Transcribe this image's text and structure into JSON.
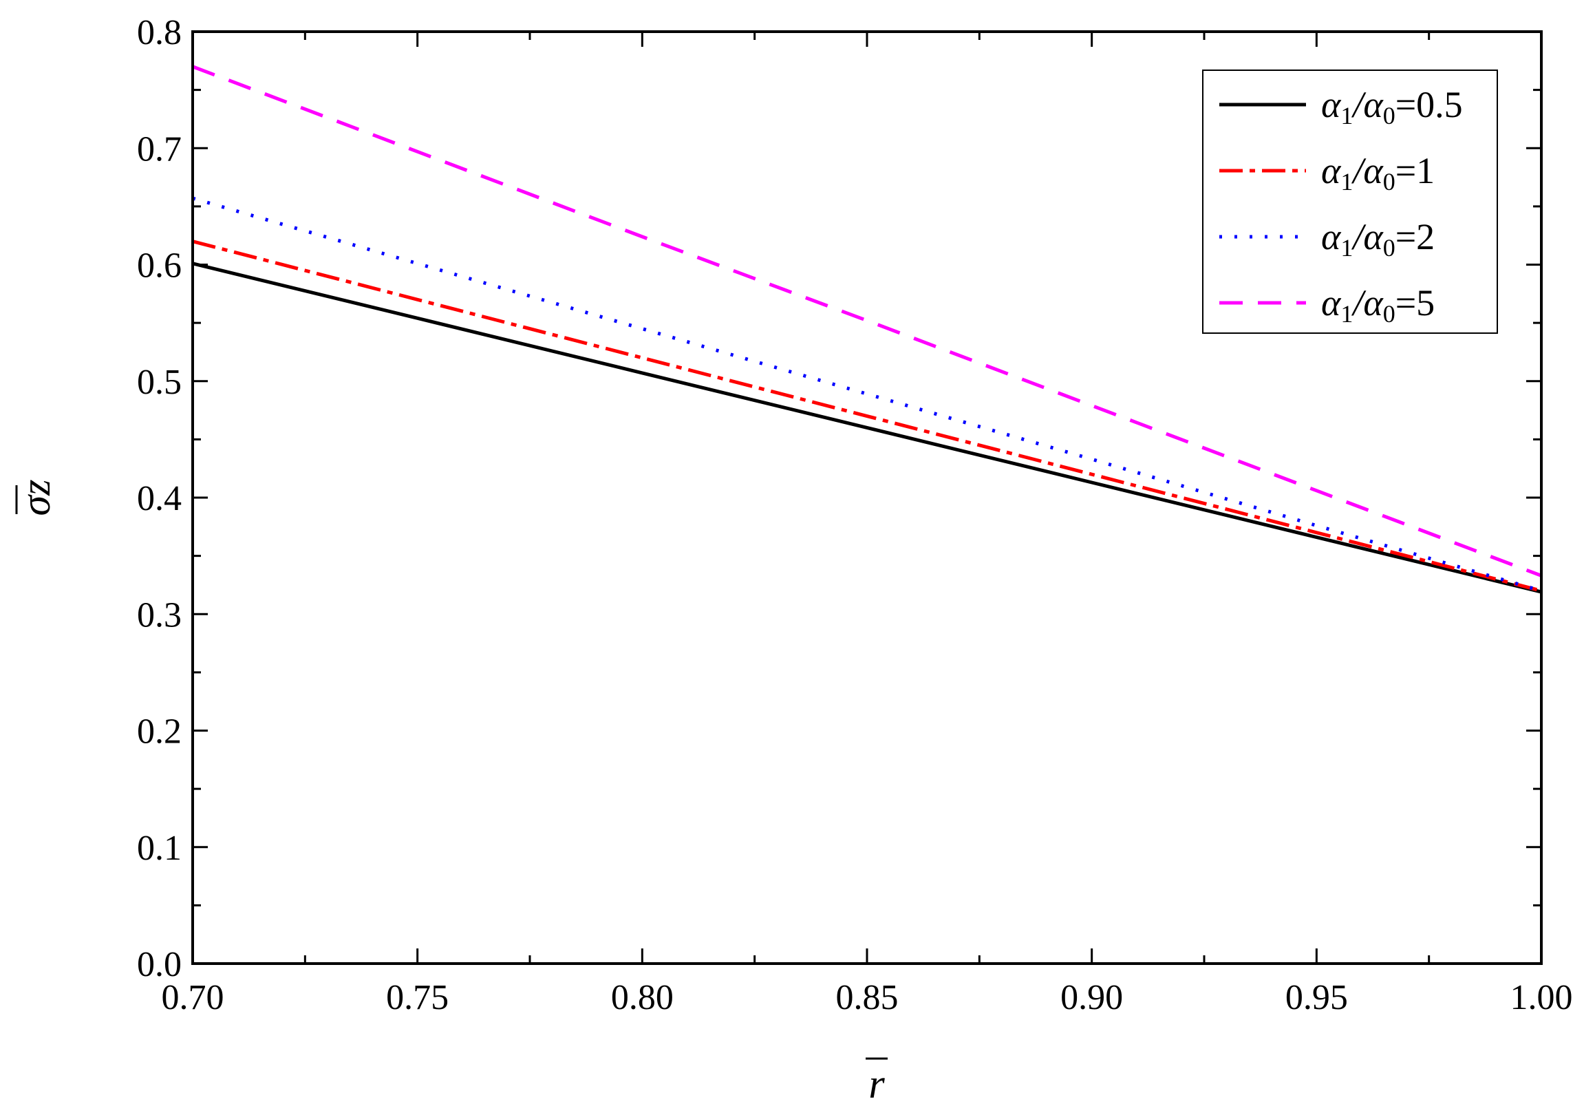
{
  "chart_data": {
    "type": "line",
    "xlabel": "r",
    "ylabel": "σz",
    "xlim": [
      0.7,
      1.0
    ],
    "ylim": [
      0.0,
      0.8
    ],
    "xticks": [
      "0.70",
      "0.75",
      "0.80",
      "0.85",
      "0.90",
      "0.95",
      "1.00"
    ],
    "yticks": [
      "0.0",
      "0.1",
      "0.2",
      "0.3",
      "0.4",
      "0.5",
      "0.6",
      "0.7",
      "0.8"
    ],
    "grid": false,
    "legend_position": "top-right",
    "series": [
      {
        "name": "α1/α0=0.5",
        "legend_prefix": "α",
        "legend_sub1": "1",
        "legend_mid": "/α",
        "legend_sub2": "0",
        "legend_value": "=0.5",
        "color": "#000000",
        "style": "solid",
        "x": [
          0.7,
          0.75,
          0.8,
          0.85,
          0.9,
          0.95,
          1.0
        ],
        "y": [
          0.601,
          0.554,
          0.507,
          0.46,
          0.413,
          0.366,
          0.319
        ]
      },
      {
        "name": "α1/α0=1",
        "legend_prefix": "α",
        "legend_sub1": "1",
        "legend_mid": "/α",
        "legend_sub2": "0",
        "legend_value": "=1",
        "color": "#ff0000",
        "style": "dashdot",
        "x": [
          0.7,
          0.75,
          0.8,
          0.85,
          0.9,
          0.95,
          1.0
        ],
        "y": [
          0.62,
          0.57,
          0.52,
          0.47,
          0.42,
          0.37,
          0.32
        ]
      },
      {
        "name": "α1/α0=2",
        "legend_prefix": "α",
        "legend_sub1": "1",
        "legend_mid": "/α",
        "legend_sub2": "0",
        "legend_value": "=2",
        "color": "#0000ff",
        "style": "dotted",
        "x": [
          0.7,
          0.75,
          0.8,
          0.85,
          0.9,
          0.95,
          1.0
        ],
        "y": [
          0.657,
          0.601,
          0.545,
          0.489,
          0.433,
          0.376,
          0.32
        ]
      },
      {
        "name": "α1/α0=5",
        "legend_prefix": "α",
        "legend_sub1": "1",
        "legend_mid": "/α",
        "legend_sub2": "0",
        "legend_value": "=5",
        "color": "#ff00ff",
        "style": "dashed",
        "x": [
          0.7,
          0.75,
          0.8,
          0.85,
          0.9,
          0.95,
          1.0
        ],
        "y": [
          0.77,
          0.697,
          0.624,
          0.552,
          0.479,
          0.406,
          0.333
        ]
      }
    ]
  }
}
